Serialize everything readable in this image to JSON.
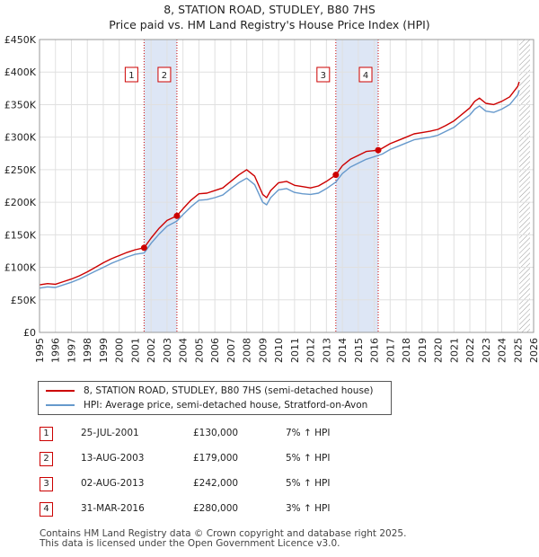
{
  "title_line1": "8, STATION ROAD, STUDLEY, B80 7HS",
  "title_line2": "Price paid vs. HM Land Registry's House Price Index (HPI)",
  "chart_data": {
    "type": "line",
    "title": "8, STATION ROAD, STUDLEY, B80 7HS — Price paid vs. HM Land Registry's House Price Index (HPI)",
    "xlabel": "",
    "ylabel": "",
    "xlim": [
      1995,
      2026
    ],
    "ylim": [
      0,
      450000
    ],
    "x_ticks": [
      1995,
      1996,
      1997,
      1998,
      1999,
      2000,
      2001,
      2002,
      2003,
      2004,
      2005,
      2006,
      2007,
      2008,
      2009,
      2010,
      2011,
      2012,
      2013,
      2014,
      2015,
      2016,
      2017,
      2018,
      2019,
      2020,
      2021,
      2022,
      2023,
      2024,
      2025,
      2026
    ],
    "y_ticks": [
      0,
      50000,
      100000,
      150000,
      200000,
      250000,
      300000,
      350000,
      400000,
      450000
    ],
    "y_tick_labels": [
      "£0",
      "£50K",
      "£100K",
      "£150K",
      "£200K",
      "£250K",
      "£300K",
      "£350K",
      "£400K",
      "£450K"
    ],
    "grid": true,
    "legend_position": "below",
    "colors": {
      "property": "#cc0000",
      "hpi": "#6699cc",
      "shade": "#dde6f5",
      "future_hatch": "#888888"
    },
    "shaded_ranges": [
      [
        2001.56,
        2003.62
      ],
      [
        2013.59,
        2016.25
      ]
    ],
    "forecast_start": 2025.1,
    "series": [
      {
        "name": "8, STATION ROAD, STUDLEY, B80 7HS (semi-detached house)",
        "color": "#cc0000",
        "x": [
          1995,
          1995.5,
          1996,
          1996.5,
          1997,
          1997.5,
          1998,
          1998.5,
          1999,
          1999.5,
          2000,
          2000.5,
          2001,
          2001.56,
          2002,
          2002.5,
          2003,
          2003.62,
          2004,
          2004.5,
          2005,
          2005.5,
          2006,
          2006.5,
          2007,
          2007.5,
          2008,
          2008.5,
          2009,
          2009.25,
          2009.5,
          2010,
          2010.5,
          2011,
          2011.5,
          2012,
          2012.5,
          2013,
          2013.59,
          2014,
          2014.5,
          2015,
          2015.5,
          2016.25,
          2016.5,
          2017,
          2017.5,
          2018,
          2018.5,
          2019,
          2019.5,
          2020,
          2020.5,
          2021,
          2021.5,
          2022,
          2022.3,
          2022.6,
          2023,
          2023.5,
          2024,
          2024.5,
          2025,
          2025.1
        ],
        "values": [
          73000,
          75000,
          74000,
          78000,
          82000,
          87000,
          93000,
          100000,
          107000,
          113000,
          118000,
          123000,
          127000,
          130000,
          145000,
          160000,
          172000,
          179000,
          190000,
          203000,
          213000,
          214000,
          218000,
          222000,
          232000,
          242000,
          250000,
          240000,
          212000,
          207000,
          218000,
          230000,
          232000,
          226000,
          224000,
          222000,
          225000,
          232000,
          242000,
          256000,
          266000,
          272000,
          278000,
          280000,
          283000,
          290000,
          295000,
          300000,
          305000,
          307000,
          309000,
          312000,
          318000,
          325000,
          335000,
          345000,
          355000,
          360000,
          352000,
          350000,
          355000,
          362000,
          378000,
          385000
        ]
      },
      {
        "name": "HPI: Average price, semi-detached house, Stratford-on-Avon",
        "color": "#6699cc",
        "x": [
          1995,
          1995.5,
          1996,
          1996.5,
          1997,
          1997.5,
          1998,
          1998.5,
          1999,
          1999.5,
          2000,
          2000.5,
          2001,
          2001.56,
          2002,
          2002.5,
          2003,
          2003.62,
          2004,
          2004.5,
          2005,
          2005.5,
          2006,
          2006.5,
          2007,
          2007.5,
          2008,
          2008.5,
          2009,
          2009.25,
          2009.5,
          2010,
          2010.5,
          2011,
          2011.5,
          2012,
          2012.5,
          2013,
          2013.59,
          2014,
          2014.5,
          2015,
          2015.5,
          2016.25,
          2016.5,
          2017,
          2017.5,
          2018,
          2018.5,
          2019,
          2019.5,
          2020,
          2020.5,
          2021,
          2021.5,
          2022,
          2022.3,
          2022.6,
          2023,
          2023.5,
          2024,
          2024.5,
          2025,
          2025.1
        ],
        "values": [
          68000,
          70000,
          69000,
          73000,
          77000,
          82000,
          88000,
          94000,
          100000,
          106000,
          111000,
          116000,
          120000,
          122000,
          137000,
          151000,
          163000,
          171000,
          181000,
          193000,
          203000,
          204000,
          207000,
          211000,
          221000,
          230000,
          237000,
          227000,
          200000,
          196000,
          207000,
          219000,
          221000,
          215000,
          213000,
          212000,
          214000,
          221000,
          231000,
          244000,
          254000,
          260000,
          266000,
          272000,
          274000,
          281000,
          286000,
          291000,
          296000,
          298000,
          300000,
          303000,
          309000,
          315000,
          325000,
          334000,
          343000,
          348000,
          340000,
          338000,
          343000,
          350000,
          365000,
          372000
        ]
      }
    ],
    "sale_points": [
      {
        "label": "1",
        "x": 2001.56,
        "value": 130000
      },
      {
        "label": "2",
        "x": 2003.62,
        "value": 179000
      },
      {
        "label": "3",
        "x": 2013.59,
        "value": 242000
      },
      {
        "label": "4",
        "x": 2016.25,
        "value": 280000
      }
    ],
    "marker_boxes": [
      {
        "label": "1",
        "x": 2001.56
      },
      {
        "label": "2",
        "x": 2003.62
      },
      {
        "label": "3",
        "x": 2013.59
      },
      {
        "label": "4",
        "x": 2016.25
      }
    ]
  },
  "legend": {
    "property": "8, STATION ROAD, STUDLEY, B80 7HS (semi-detached house)",
    "hpi": "HPI: Average price, semi-detached house, Stratford-on-Avon"
  },
  "sales": [
    {
      "num": "1",
      "date": "25-JUL-2001",
      "price": "£130,000",
      "hpi": "7% ↑ HPI"
    },
    {
      "num": "2",
      "date": "13-AUG-2003",
      "price": "£179,000",
      "hpi": "5% ↑ HPI"
    },
    {
      "num": "3",
      "date": "02-AUG-2013",
      "price": "£242,000",
      "hpi": "5% ↑ HPI"
    },
    {
      "num": "4",
      "date": "31-MAR-2016",
      "price": "£280,000",
      "hpi": "3% ↑ HPI"
    }
  ],
  "footer_line1": "Contains HM Land Registry data © Crown copyright and database right 2025.",
  "footer_line2": "This data is licensed under the Open Government Licence v3.0."
}
